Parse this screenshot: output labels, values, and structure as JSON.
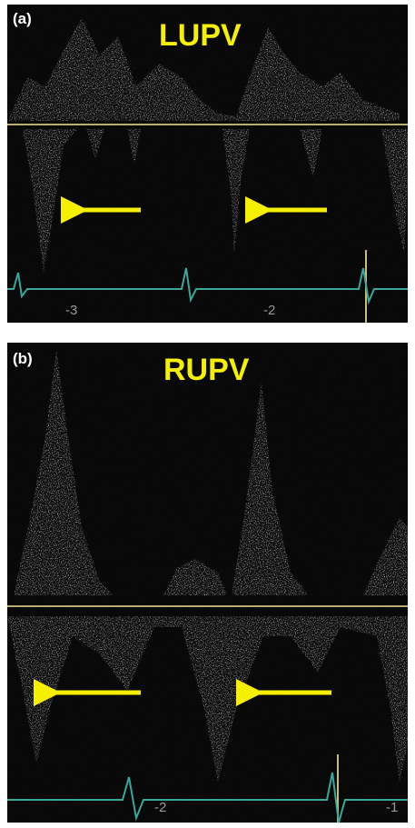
{
  "panels": [
    {
      "label": "(a)",
      "title": "LUPV",
      "ticks": [
        "-3",
        "-2"
      ]
    },
    {
      "label": "(b)",
      "title": "RUPV",
      "ticks": [
        "-2",
        "-1"
      ]
    }
  ]
}
